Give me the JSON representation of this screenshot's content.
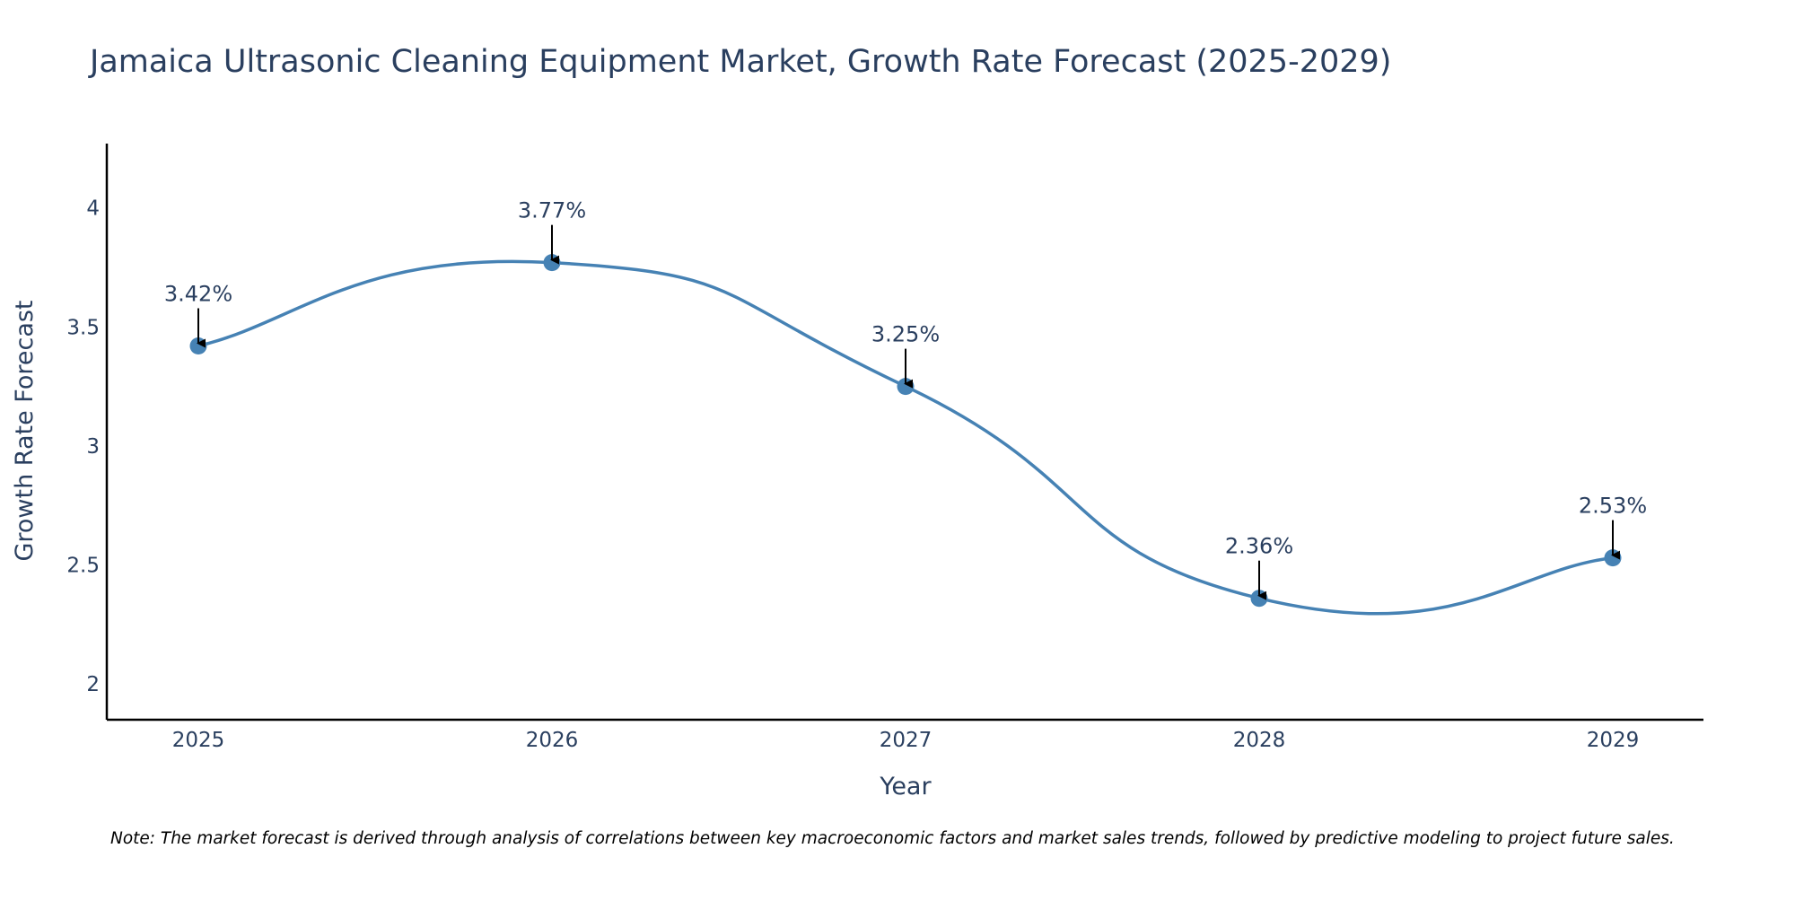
{
  "chart_data": {
    "type": "line",
    "title": "Jamaica Ultrasonic Cleaning Equipment Market, Growth Rate Forecast (2025-2029)",
    "xlabel": "Year",
    "ylabel": "Growth Rate Forecast",
    "categories": [
      "2025",
      "2026",
      "2027",
      "2028",
      "2029"
    ],
    "series": [
      {
        "name": "Growth Rate Forecast",
        "values": [
          3.42,
          3.77,
          3.25,
          2.36,
          2.53
        ],
        "labels": [
          "3.42%",
          "3.77%",
          "3.25%",
          "2.36%",
          "2.53%"
        ],
        "color": "#4682b4"
      }
    ],
    "yticks": [
      2,
      2.5,
      3,
      3.5,
      4
    ],
    "ytick_labels": [
      "2",
      "2.5",
      "3",
      "3.5",
      "4"
    ],
    "ylim": [
      1.85,
      4.27
    ],
    "grid": false,
    "line_shape": "spline",
    "annotation_arrow_color": "#000000",
    "text_color": "#2a3f5f",
    "note": "Note: The market forecast is derived through analysis of correlations between key macroeconomic factors and market sales trends, followed by predictive modeling to project future sales."
  }
}
